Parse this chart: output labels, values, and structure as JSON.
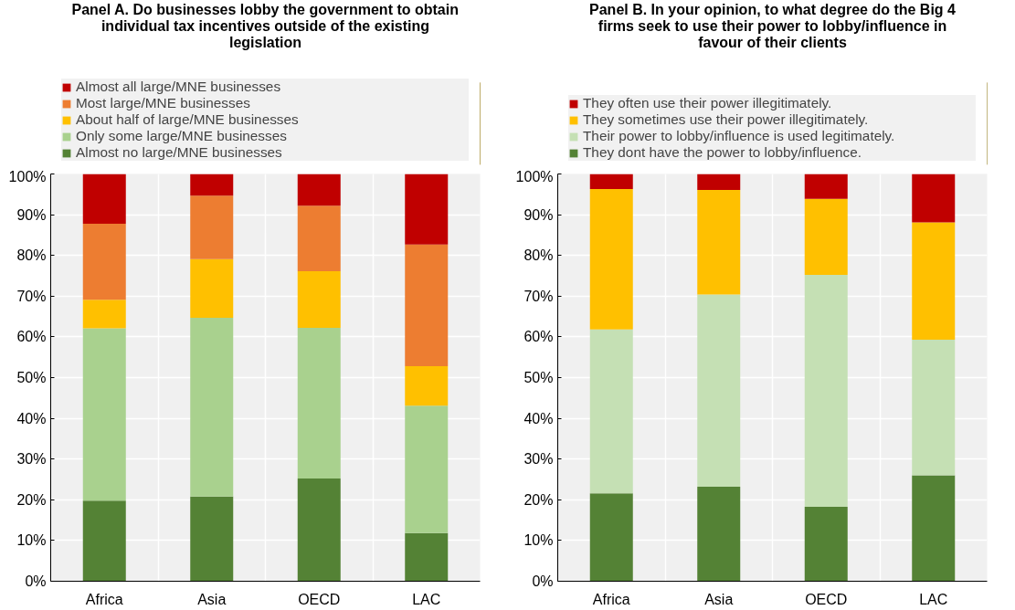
{
  "chart_data": [
    {
      "type": "bar",
      "stacked": true,
      "title": "Panel A. Do businesses lobby the government to obtain individual tax incentives outside of the existing legislation",
      "categories": [
        "Africa",
        "Asia",
        "OECD",
        "LAC"
      ],
      "series": [
        {
          "name": "Almost no large/MNE businesses",
          "color": "#548235",
          "values": [
            19.8,
            20.8,
            25.2,
            11.8
          ]
        },
        {
          "name": "Only some large/MNE businesses",
          "color": "#a9d18e",
          "values": [
            42.3,
            43.9,
            37.0,
            31.3
          ]
        },
        {
          "name": "About half of large/MNE businesses",
          "color": "#ffc000",
          "values": [
            7.0,
            14.4,
            13.9,
            9.7
          ]
        },
        {
          "name": "Most large/MNE businesses",
          "color": "#ed7d31",
          "values": [
            18.7,
            15.6,
            16.1,
            29.9
          ]
        },
        {
          "name": "Almost all large/MNE businesses",
          "color": "#c00000",
          "values": [
            12.2,
            5.3,
            7.8,
            17.3
          ]
        }
      ],
      "ylim": [
        0,
        100
      ],
      "yticks": [
        {
          "value": 0,
          "label": "0%"
        },
        {
          "value": 10,
          "label": "10%"
        },
        {
          "value": 20,
          "label": "20%"
        },
        {
          "value": 30,
          "label": "30%"
        },
        {
          "value": 40,
          "label": "40%"
        },
        {
          "value": 50,
          "label": "50%"
        },
        {
          "value": 60,
          "label": "60%"
        },
        {
          "value": 70,
          "label": "70%"
        },
        {
          "value": 80,
          "label": "80%"
        },
        {
          "value": 90,
          "label": "90%"
        },
        {
          "value": 100,
          "label": "100%"
        }
      ],
      "grid": true,
      "legend": "top"
    },
    {
      "type": "bar",
      "stacked": true,
      "title": "Panel B. In your opinion, to what degree do the Big 4 firms seek to use their power to lobby/influence in favour of their clients",
      "categories": [
        "Africa",
        "Asia",
        "OECD",
        "LAC"
      ],
      "series": [
        {
          "name": "They dont have the power to lobby/influence.",
          "color": "#548235",
          "values": [
            21.6,
            23.2,
            18.3,
            26.0
          ]
        },
        {
          "name": "Their power to lobby/influence is used legitimately.",
          "color": "#c5e0b4",
          "values": [
            40.2,
            47.2,
            56.9,
            33.3
          ]
        },
        {
          "name": "They sometimes use their power illegitimately.",
          "color": "#ffc000",
          "values": [
            34.5,
            25.7,
            18.7,
            28.8
          ]
        },
        {
          "name": "They often use their power illegitimately.",
          "color": "#c00000",
          "values": [
            3.7,
            3.9,
            6.1,
            11.9
          ]
        }
      ],
      "ylim": [
        0,
        100
      ],
      "yticks": [
        {
          "value": 0,
          "label": "0%"
        },
        {
          "value": 10,
          "label": "10%"
        },
        {
          "value": 20,
          "label": "20%"
        },
        {
          "value": 30,
          "label": "30%"
        },
        {
          "value": 40,
          "label": "40%"
        },
        {
          "value": 50,
          "label": "50%"
        },
        {
          "value": 60,
          "label": "60%"
        },
        {
          "value": 70,
          "label": "70%"
        },
        {
          "value": 80,
          "label": "80%"
        },
        {
          "value": 90,
          "label": "90%"
        },
        {
          "value": 100,
          "label": "100%"
        }
      ],
      "grid": true,
      "legend": "top"
    }
  ]
}
